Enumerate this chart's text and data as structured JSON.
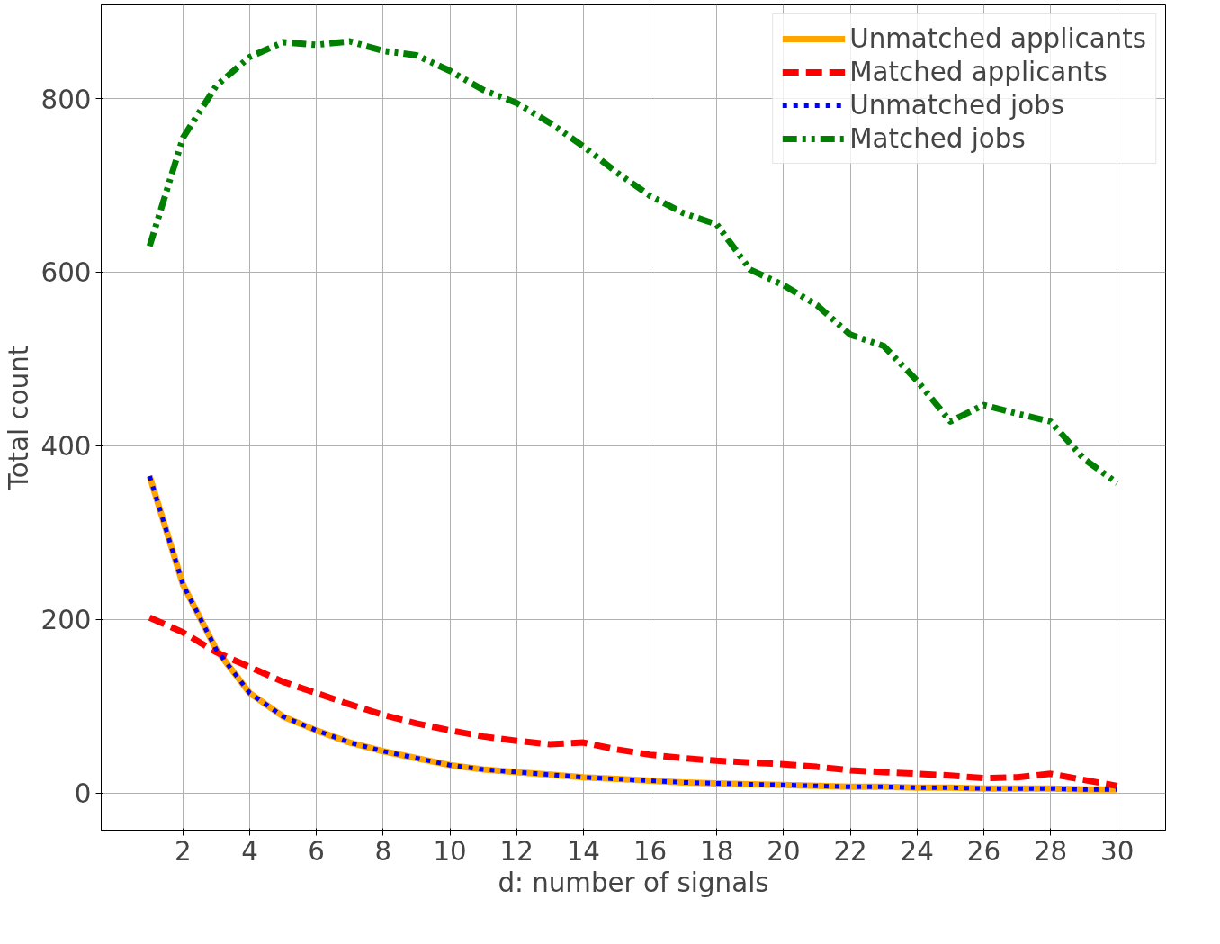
{
  "chart_data": {
    "type": "line",
    "xlabel": "d: number of signals",
    "ylabel": "Total count",
    "x": [
      1,
      2,
      3,
      4,
      5,
      6,
      7,
      8,
      9,
      10,
      11,
      12,
      13,
      14,
      15,
      16,
      17,
      18,
      19,
      20,
      21,
      22,
      23,
      24,
      25,
      26,
      27,
      28,
      29,
      30
    ],
    "xlim": [
      -0.45,
      31.45
    ],
    "xticks": [
      2,
      4,
      6,
      8,
      10,
      12,
      14,
      16,
      18,
      20,
      22,
      24,
      26,
      28,
      30
    ],
    "ylim": [
      -43,
      908
    ],
    "yticks": [
      0,
      200,
      400,
      600,
      800
    ],
    "grid": true,
    "legend": "top right",
    "series": [
      {
        "name": "Unmatched applicants",
        "color": "#ffa500",
        "line_style": "solid",
        "values": [
          365,
          240,
          165,
          115,
          88,
          72,
          58,
          48,
          40,
          32,
          27,
          24,
          21,
          18,
          16,
          14,
          12,
          11,
          10,
          9,
          8,
          7,
          7,
          6,
          6,
          5,
          5,
          5,
          4,
          4
        ]
      },
      {
        "name": "Matched applicants",
        "color": "#ff0000",
        "line_style": "dashed",
        "values": [
          202,
          185,
          162,
          145,
          128,
          115,
          102,
          90,
          80,
          72,
          65,
          60,
          56,
          58,
          50,
          44,
          40,
          37,
          35,
          33,
          30,
          26,
          24,
          22,
          20,
          17,
          18,
          22,
          15,
          8
        ]
      },
      {
        "name": "Unmatched jobs",
        "color": "#0000ff",
        "line_style": "dotted",
        "values": [
          365,
          240,
          165,
          115,
          88,
          72,
          58,
          48,
          40,
          32,
          27,
          24,
          21,
          18,
          16,
          14,
          12,
          11,
          10,
          9,
          8,
          7,
          7,
          6,
          6,
          5,
          5,
          5,
          4,
          4
        ]
      },
      {
        "name": "Matched jobs",
        "color": "#008000",
        "line_style": "dashdot",
        "values": [
          630,
          755,
          815,
          848,
          865,
          862,
          866,
          855,
          850,
          832,
          810,
          795,
          772,
          745,
          715,
          688,
          668,
          655,
          603,
          585,
          562,
          528,
          515,
          475,
          428,
          447,
          437,
          428,
          385,
          357
        ]
      }
    ]
  }
}
